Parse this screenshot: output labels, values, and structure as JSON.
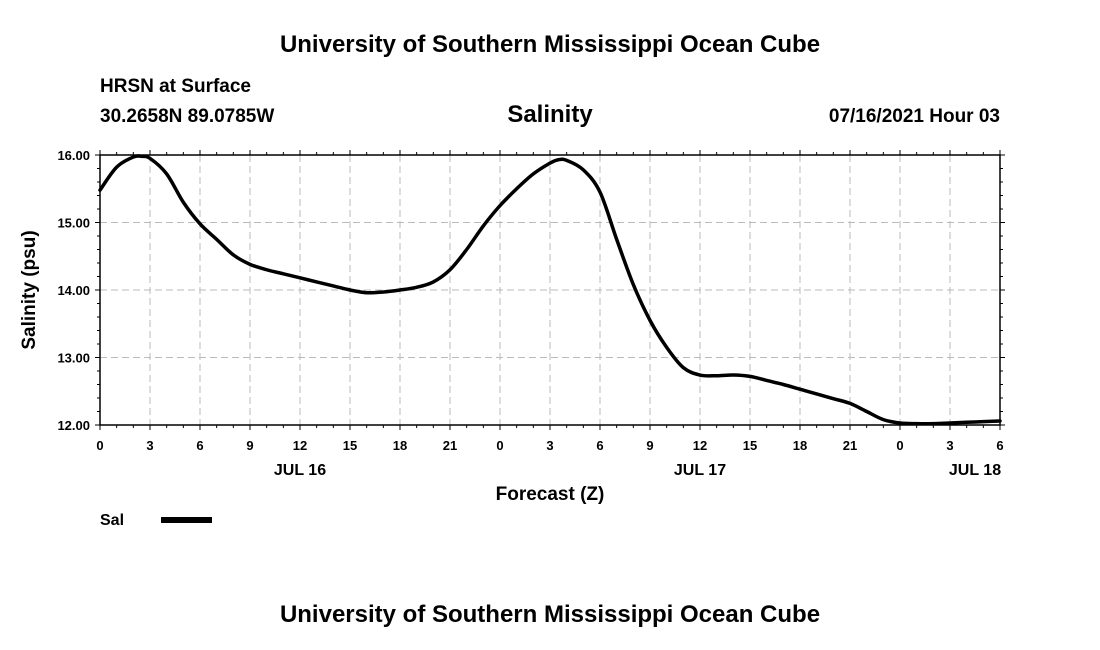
{
  "header": {
    "org_title": "University of Southern Mississippi Ocean Cube",
    "station": "HRSN at Surface",
    "coords": "30.2658N  89.0785W",
    "run": "07/16/2021 Hour 03"
  },
  "footer": {
    "org_title": "University of Southern Mississippi Ocean Cube"
  },
  "chart_data": {
    "type": "line",
    "title": "Salinity",
    "xlabel": "Forecast (Z)",
    "ylabel": "Salinity (psu)",
    "ylim": [
      12.0,
      16.0
    ],
    "xlim": [
      0,
      54
    ],
    "y_ticks": [
      "12.00",
      "13.00",
      "14.00",
      "15.00",
      "16.00"
    ],
    "y_tick_values": [
      12,
      13,
      14,
      15,
      16
    ],
    "x_tick_labels": [
      "0",
      "3",
      "6",
      "9",
      "12",
      "15",
      "18",
      "21",
      "0",
      "3",
      "6",
      "9",
      "12",
      "15",
      "18",
      "21",
      "0",
      "3",
      "6"
    ],
    "x_tick_values": [
      0,
      3,
      6,
      9,
      12,
      15,
      18,
      21,
      24,
      27,
      30,
      33,
      36,
      39,
      42,
      45,
      48,
      51,
      54
    ],
    "day_labels": [
      {
        "label": "JUL 16",
        "hour": 12
      },
      {
        "label": "JUL 17",
        "hour": 36
      },
      {
        "label": "JUL 18",
        "hour": 52.5
      }
    ],
    "grid": true,
    "legend": [
      {
        "name": "Sal",
        "color": "#000000"
      }
    ],
    "series": [
      {
        "name": "Sal",
        "color": "#000000",
        "x": [
          0,
          1,
          2,
          2.5,
          3,
          4,
          5,
          6,
          7,
          8,
          9,
          10,
          11,
          12,
          13,
          14,
          15,
          16,
          17,
          18,
          19,
          20,
          21,
          22,
          23,
          24,
          25,
          26,
          27,
          27.5,
          28,
          29,
          30,
          31,
          32,
          33,
          34,
          35,
          36,
          37,
          38,
          39,
          40,
          41,
          42,
          43,
          44,
          45,
          46,
          47,
          48,
          49,
          50,
          51,
          52,
          53,
          54
        ],
        "values": [
          15.48,
          15.82,
          15.97,
          15.98,
          15.95,
          15.72,
          15.3,
          14.98,
          14.75,
          14.52,
          14.38,
          14.3,
          14.24,
          14.18,
          14.12,
          14.06,
          14.0,
          13.96,
          13.97,
          14.0,
          14.04,
          14.12,
          14.3,
          14.6,
          14.95,
          15.25,
          15.5,
          15.72,
          15.88,
          15.93,
          15.92,
          15.78,
          15.45,
          14.75,
          14.08,
          13.55,
          13.15,
          12.85,
          12.74,
          12.73,
          12.74,
          12.72,
          12.66,
          12.6,
          12.53,
          12.46,
          12.39,
          12.32,
          12.2,
          12.08,
          12.03,
          12.02,
          12.02,
          12.03,
          12.04,
          12.05,
          12.06
        ]
      }
    ]
  }
}
